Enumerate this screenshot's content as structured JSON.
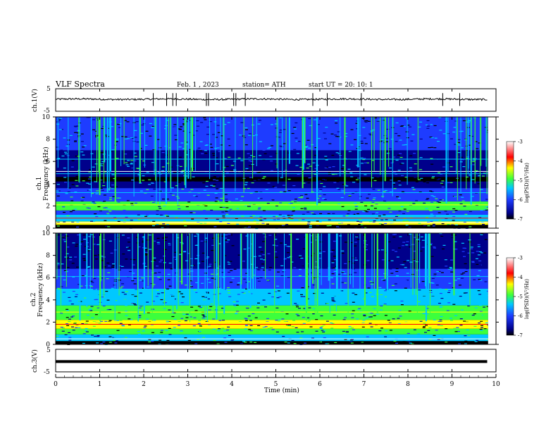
{
  "header": {
    "title": "VLF  Spectra",
    "date": "Feb. 1  , 2023",
    "station": "station= ATH",
    "start_ut": "start  UT  =   20: 10: 1"
  },
  "chart_data": [
    {
      "type": "line",
      "panel": "ch1-waveform",
      "ylabel": "ch.1(V)",
      "yticks": [
        "5",
        "-5"
      ],
      "ylim": [
        -5,
        5
      ],
      "x": [
        0,
        0.5,
        1,
        1.5,
        2,
        2.5,
        3,
        3.5,
        4,
        4.5,
        5,
        5.5,
        6,
        6.5,
        7,
        7.5,
        8,
        8.5,
        9,
        9.5,
        9.8
      ],
      "y": [
        0.3,
        0.5,
        0.2,
        0.6,
        0.4,
        0.5,
        0.3,
        0.6,
        0.4,
        0.5,
        0.3,
        0.5,
        0.4,
        0.6,
        0.3,
        0.5,
        0.4,
        0.5,
        0.3,
        0.5,
        0.4
      ],
      "xlim": [
        0,
        10
      ]
    },
    {
      "type": "heatmap",
      "panel": "ch1-spectrogram",
      "ylabel": "ch.1\nFrequency  (kHz)",
      "yticks": [
        "0",
        "2",
        "4",
        "6",
        "8",
        "10"
      ],
      "ylim": [
        0,
        10
      ],
      "xlim": [
        0,
        10
      ],
      "colorbar_label": "log(PSD)(V²/Hz)",
      "colorbar_ticks": [
        "-3",
        "-4",
        "-5",
        "-6",
        "-7"
      ],
      "clim": [
        -7,
        -3
      ]
    },
    {
      "type": "heatmap",
      "panel": "ch2-spectrogram",
      "ylabel": "ch.2\nFrequency  (kHz)",
      "yticks": [
        "0",
        "2",
        "4",
        "6",
        "8",
        "10"
      ],
      "ylim": [
        0,
        10
      ],
      "xlim": [
        0,
        10
      ],
      "colorbar_label": "log(PSD)(V²/Hz)",
      "colorbar_ticks": [
        "-3",
        "-4",
        "-5",
        "-6",
        "-7"
      ],
      "clim": [
        -7,
        -3
      ]
    },
    {
      "type": "line",
      "panel": "ch3-waveform",
      "ylabel": "ch.3(V)",
      "yticks": [
        "5",
        "-5"
      ],
      "ylim": [
        -5,
        5
      ],
      "x": [
        0,
        9.8
      ],
      "y": [
        -0.5,
        -0.5
      ],
      "xlim": [
        0,
        10
      ]
    }
  ],
  "x_axis": {
    "label": "Time  (min)",
    "ticks": [
      "0",
      "1",
      "2",
      "3",
      "4",
      "5",
      "6",
      "7",
      "8",
      "9",
      "10"
    ]
  },
  "labels": {
    "ch1_title": "ch.1(V)",
    "ch1_spec_a": "ch.1",
    "ch1_spec_b": "Frequency  (kHz)",
    "ch2_spec_a": "ch.2",
    "ch2_spec_b": "Frequency  (kHz)",
    "ch3_title": "ch.3(V)",
    "cb_label": "log(PSD)(V²/Hz)"
  },
  "colors": {
    "background": "#ffffff",
    "axes": "#000000",
    "spec_black": "#000000",
    "spec_navy": "#00008b",
    "spec_blue": "#1e3cff",
    "spec_cyan": "#00c8ff",
    "spec_green": "#3cff3c",
    "spec_yellow": "#ffff00",
    "spec_red": "#ff0000",
    "spec_white": "#ffffff"
  }
}
